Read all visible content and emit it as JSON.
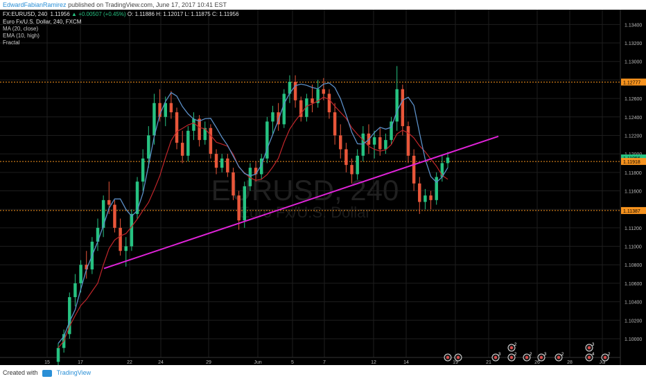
{
  "header": {
    "author": "EdwardFabianRamirez",
    "published": "published on TradingView.com, June 17, 2017 10:41 EST"
  },
  "info": {
    "symbol": "FX:EURUSD, 240",
    "last": "1.11956",
    "change": "▲ +0.00507 (+0.45%)",
    "open": "O: 1.11886",
    "high": "H: 1.12017",
    "low": "L: 1.11875",
    "close": "C: 1.11956",
    "title": "Euro Fx/U.S. Dollar, 240, FXCM",
    "indicators": [
      "MA (20, close)",
      "EMA (10, high)",
      "Fractal"
    ]
  },
  "watermark": {
    "symbol": "EURUSD, 240",
    "name": "Euro Fx/U.S. Dollar"
  },
  "price_axis": {
    "ticks": [
      "1.13400",
      "1.13200",
      "1.13000",
      "1.12800",
      "1.12600",
      "1.12400",
      "1.12200",
      "1.12000",
      "1.11800",
      "1.11600",
      "1.11400",
      "1.11200",
      "1.11000",
      "1.10800",
      "1.10600",
      "1.10400",
      "1.10200",
      "1.10000"
    ],
    "tick_values": [
      1.134,
      1.132,
      1.13,
      1.128,
      1.126,
      1.124,
      1.122,
      1.12,
      1.118,
      1.116,
      1.114,
      1.112,
      1.11,
      1.108,
      1.106,
      1.104,
      1.102,
      1.1
    ],
    "labels": [
      {
        "text": "1.12777",
        "value": 1.12777,
        "color": "#f7931e"
      },
      {
        "text": "1.11956",
        "value": 1.11956,
        "color": "#26c281"
      },
      {
        "text": "1.11918",
        "value": 1.11918,
        "color": "#f7931e"
      },
      {
        "text": "1.11387",
        "value": 1.11387,
        "color": "#f7931e"
      }
    ]
  },
  "time_axis": {
    "labels": [
      "15",
      "17",
      "22",
      "24",
      "29",
      "Jun",
      "5",
      "7",
      "12",
      "14",
      "19",
      "21",
      "26",
      "28",
      "Jul"
    ]
  },
  "chart_data": {
    "type": "candlestick",
    "symbol": "EURUSD",
    "timeframe": "240",
    "horizontal_levels": [
      1.12777,
      1.11918,
      1.11387
    ],
    "trendline": {
      "from": {
        "date": "May 18",
        "price": 1.1076
      },
      "to": {
        "date": "Jun 21",
        "price": 1.1219
      }
    },
    "candles_approx": [
      [
        1.0975,
        1.0995,
        1.097,
        1.099
      ],
      [
        1.099,
        1.101,
        1.0985,
        1.1005
      ],
      [
        1.1005,
        1.105,
        1.1,
        1.1045
      ],
      [
        1.1045,
        1.107,
        1.1035,
        1.106
      ],
      [
        1.106,
        1.1085,
        1.105,
        1.108
      ],
      [
        1.108,
        1.1095,
        1.1065,
        1.1075
      ],
      [
        1.1075,
        1.111,
        1.107,
        1.1105
      ],
      [
        1.1105,
        1.113,
        1.1095,
        1.112
      ],
      [
        1.112,
        1.1155,
        1.111,
        1.115
      ],
      [
        1.115,
        1.117,
        1.1135,
        1.1145
      ],
      [
        1.1145,
        1.115,
        1.1115,
        1.112
      ],
      [
        1.112,
        1.113,
        1.109,
        1.1095
      ],
      [
        1.1095,
        1.111,
        1.1078,
        1.11
      ],
      [
        1.11,
        1.114,
        1.1095,
        1.1135
      ],
      [
        1.1135,
        1.1175,
        1.113,
        1.117
      ],
      [
        1.117,
        1.1205,
        1.116,
        1.1195
      ],
      [
        1.1195,
        1.123,
        1.1185,
        1.122
      ],
      [
        1.122,
        1.1265,
        1.121,
        1.1255
      ],
      [
        1.1255,
        1.127,
        1.1235,
        1.124
      ],
      [
        1.124,
        1.1262,
        1.123,
        1.1255
      ],
      [
        1.1255,
        1.1268,
        1.1238,
        1.1245
      ],
      [
        1.1245,
        1.125,
        1.1205,
        1.1212
      ],
      [
        1.1212,
        1.1225,
        1.119,
        1.1198
      ],
      [
        1.1198,
        1.123,
        1.1192,
        1.1225
      ],
      [
        1.1225,
        1.1245,
        1.1215,
        1.1238
      ],
      [
        1.1238,
        1.1242,
        1.1208,
        1.1215
      ],
      [
        1.1215,
        1.1235,
        1.121,
        1.1228
      ],
      [
        1.1228,
        1.1232,
        1.1195,
        1.12
      ],
      [
        1.12,
        1.1205,
        1.1178,
        1.1185
      ],
      [
        1.1185,
        1.12,
        1.118,
        1.1195
      ],
      [
        1.1195,
        1.12,
        1.1175,
        1.118
      ],
      [
        1.118,
        1.1185,
        1.115,
        1.1155
      ],
      [
        1.1155,
        1.116,
        1.1118,
        1.1128
      ],
      [
        1.1128,
        1.117,
        1.112,
        1.1165
      ],
      [
        1.1165,
        1.119,
        1.116,
        1.1185
      ],
      [
        1.1185,
        1.1192,
        1.117,
        1.1178
      ],
      [
        1.1178,
        1.12,
        1.1172,
        1.1195
      ],
      [
        1.1195,
        1.124,
        1.119,
        1.1235
      ],
      [
        1.1235,
        1.1252,
        1.122,
        1.1245
      ],
      [
        1.1245,
        1.1255,
        1.1225,
        1.1232
      ],
      [
        1.1232,
        1.127,
        1.1228,
        1.1265
      ],
      [
        1.1265,
        1.1285,
        1.1255,
        1.1278
      ],
      [
        1.1278,
        1.1285,
        1.125,
        1.1258
      ],
      [
        1.1258,
        1.1262,
        1.1235,
        1.124
      ],
      [
        1.124,
        1.1265,
        1.1235,
        1.126
      ],
      [
        1.126,
        1.1275,
        1.1245,
        1.1255
      ],
      [
        1.1255,
        1.128,
        1.125,
        1.127
      ],
      [
        1.127,
        1.1282,
        1.1258,
        1.1265
      ],
      [
        1.1265,
        1.127,
        1.1238,
        1.1245
      ],
      [
        1.1245,
        1.1255,
        1.121,
        1.122
      ],
      [
        1.122,
        1.1232,
        1.1195,
        1.1205
      ],
      [
        1.1205,
        1.1212,
        1.118,
        1.1188
      ],
      [
        1.1188,
        1.1195,
        1.1168,
        1.1178
      ],
      [
        1.1178,
        1.1205,
        1.1172,
        1.1198
      ],
      [
        1.1198,
        1.123,
        1.1192,
        1.1222
      ],
      [
        1.1222,
        1.1232,
        1.12,
        1.121
      ],
      [
        1.121,
        1.1225,
        1.1195,
        1.1218
      ],
      [
        1.1218,
        1.1228,
        1.1198,
        1.1205
      ],
      [
        1.1205,
        1.1222,
        1.12,
        1.1215
      ],
      [
        1.1215,
        1.124,
        1.121,
        1.1235
      ],
      [
        1.1235,
        1.1295,
        1.1225,
        1.127
      ],
      [
        1.127,
        1.1275,
        1.122,
        1.123
      ],
      [
        1.123,
        1.1235,
        1.119,
        1.1198
      ],
      [
        1.1198,
        1.1205,
        1.116,
        1.1168
      ],
      [
        1.1168,
        1.1175,
        1.1135,
        1.1148
      ],
      [
        1.1148,
        1.1162,
        1.114,
        1.1155
      ],
      [
        1.1155,
        1.116,
        1.114,
        1.115
      ],
      [
        1.115,
        1.118,
        1.1145,
        1.1175
      ],
      [
        1.1175,
        1.1198,
        1.117,
        1.119
      ],
      [
        1.119,
        1.1202,
        1.1185,
        1.1196
      ]
    ]
  },
  "event_markers": [
    {
      "kind": "flag",
      "count": ""
    },
    {
      "kind": "flag",
      "count": ""
    },
    {
      "kind": "flag",
      "count": "3"
    },
    {
      "kind": "flag",
      "count": "2"
    },
    {
      "kind": "flag",
      "count": "2"
    },
    {
      "kind": "flag",
      "count": "2"
    },
    {
      "kind": "flag",
      "count": "3"
    },
    {
      "kind": "flag",
      "count": "2"
    },
    {
      "kind": "flag",
      "count": "3"
    },
    {
      "kind": "flag",
      "count": "4"
    },
    {
      "kind": "flag",
      "count": "2"
    }
  ],
  "footer": {
    "created_with": "Created with",
    "brand": "TradingView"
  },
  "colors": {
    "up": "#26c281",
    "down": "#e8563a",
    "ma": "#c0262b",
    "ema": "#5b8fc7",
    "trend": "#e023d9",
    "level": "#f7931e",
    "background": "#000000",
    "grid": "#1e1e1e"
  }
}
